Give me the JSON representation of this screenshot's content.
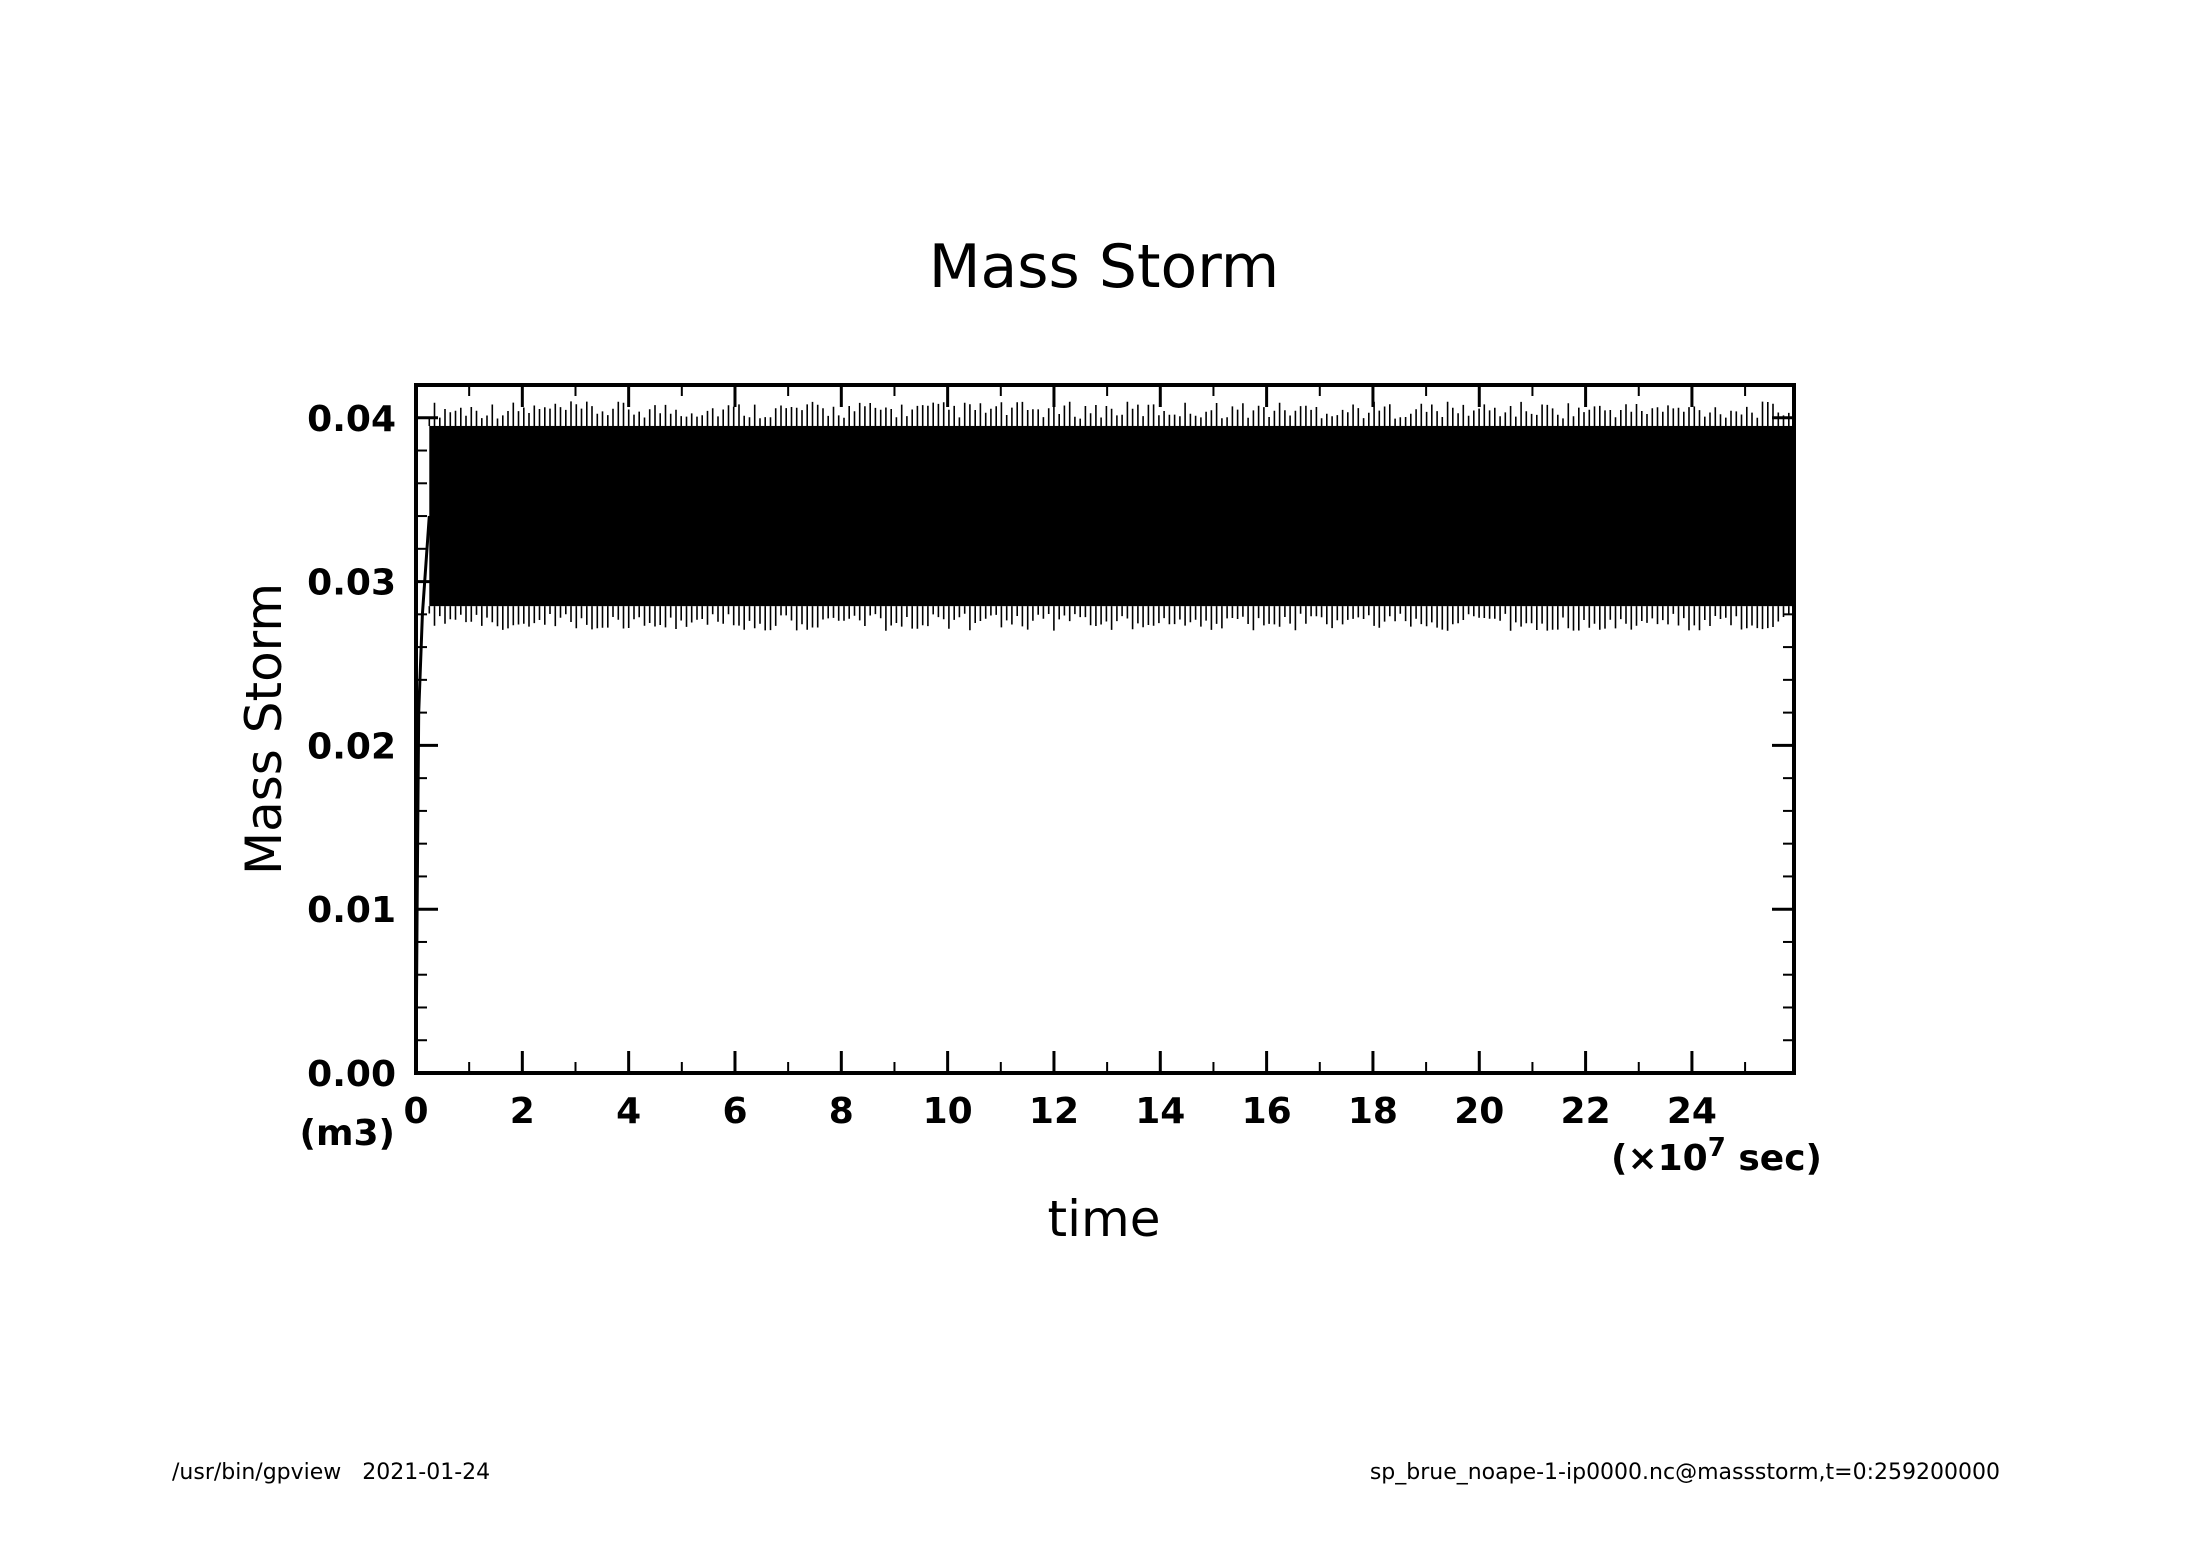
{
  "chart_data": {
    "type": "line",
    "title": "Mass Storm",
    "xlabel": "time",
    "ylabel": "Mass Storm",
    "x_unit_prefix": "(×10",
    "x_unit_exp": "7",
    "x_unit_suffix": " sec)",
    "y_unit": "(m3)",
    "xlim": [
      0,
      25.92
    ],
    "ylim": [
      0.0,
      0.042
    ],
    "x_ticks": [
      0,
      2,
      4,
      6,
      8,
      10,
      12,
      14,
      16,
      18,
      20,
      22,
      24
    ],
    "x_tick_labels": [
      "0",
      "2",
      "4",
      "6",
      "8",
      "10",
      "12",
      "14",
      "16",
      "18",
      "20",
      "22",
      "24"
    ],
    "y_ticks": [
      0.0,
      0.01,
      0.02,
      0.03,
      0.04
    ],
    "y_tick_labels": [
      "0.00",
      "0.01",
      "0.02",
      "0.03",
      "0.04"
    ],
    "series": [
      {
        "name": "massstorm",
        "description_values": {
          "spinup": [
            [
              0,
              0.0
            ],
            [
              0.02,
              0.01
            ],
            [
              0.05,
              0.022
            ],
            [
              0.12,
              0.028
            ],
            [
              0.25,
              0.034
            ]
          ],
          "oscillation_band": [
            0.027,
            0.041
          ],
          "dense_band": [
            0.0285,
            0.0395
          ],
          "cycles": 260
        }
      }
    ],
    "grid": false,
    "legend": "none"
  },
  "footer": {
    "left": "/usr/bin/gpview   2021-01-24",
    "right": "sp_brue_noape-1-ip0000.nc@massstorm,t=0:259200000"
  }
}
